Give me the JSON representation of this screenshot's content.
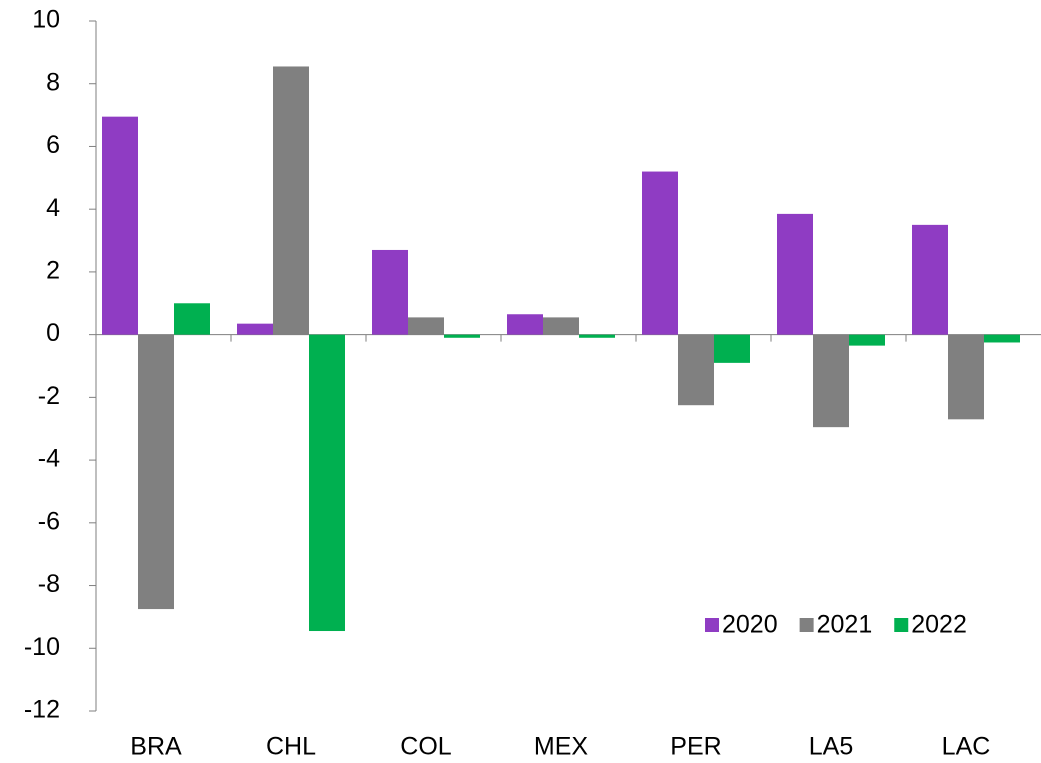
{
  "chart_data": {
    "type": "bar",
    "categories": [
      "BRA",
      "CHL",
      "COL",
      "MEX",
      "PER",
      "LA5",
      "LAC"
    ],
    "series": [
      {
        "name": "2020",
        "color": "#8f3cc3",
        "values": [
          6.95,
          0.35,
          2.7,
          0.65,
          5.2,
          3.85,
          3.5
        ]
      },
      {
        "name": "2021",
        "color": "#808080",
        "values": [
          -8.75,
          8.55,
          0.55,
          0.55,
          -2.25,
          -2.95,
          -2.7
        ]
      },
      {
        "name": "2022",
        "color": "#00b050",
        "values": [
          1.0,
          -9.45,
          -0.1,
          -0.1,
          -0.9,
          -0.35,
          -0.25
        ]
      }
    ],
    "ylim": [
      -12,
      10
    ],
    "yticks": [
      -12,
      -10,
      -8,
      -6,
      -4,
      -2,
      0,
      2,
      4,
      6,
      8,
      10
    ],
    "grid": false,
    "legend": "lower right"
  }
}
